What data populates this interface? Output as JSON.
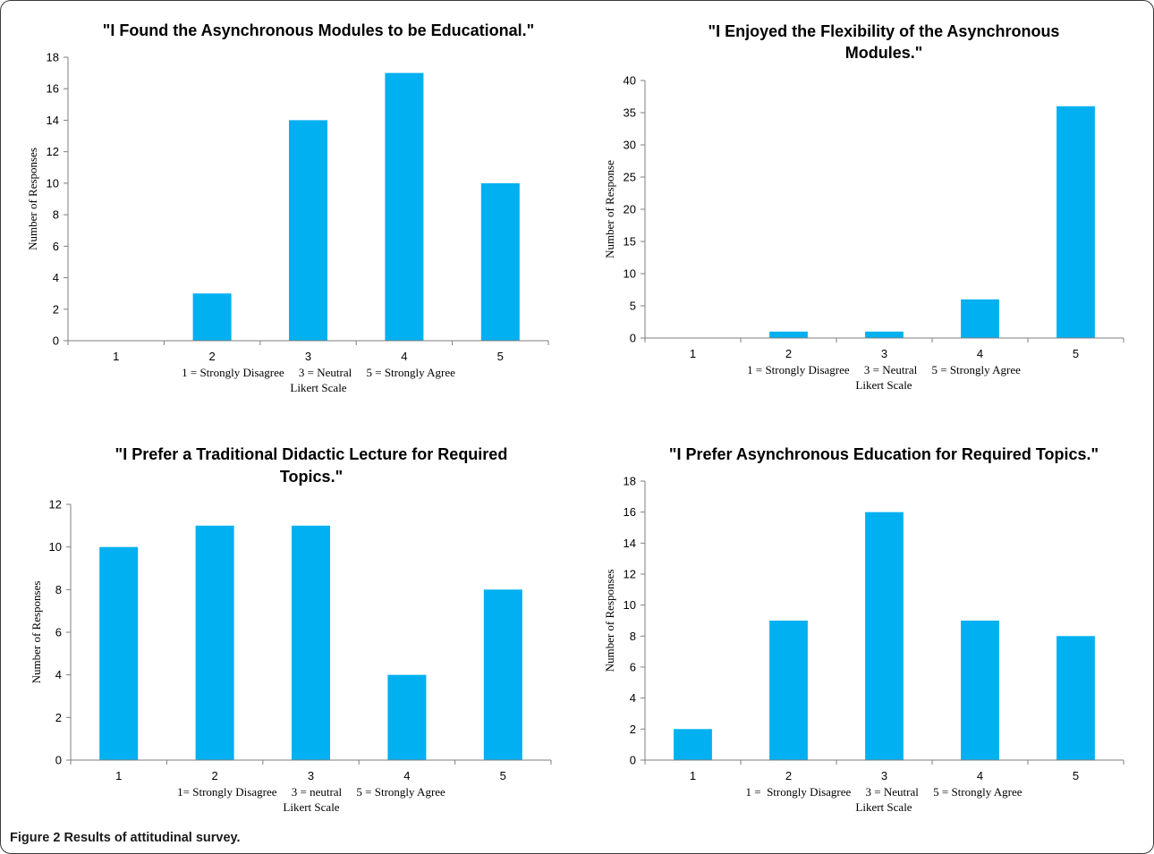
{
  "colors": {
    "bar": "#00b0f0",
    "axis": "#7f7f7f",
    "text": "#000000"
  },
  "caption": {
    "label": "Figure 2",
    "text": "Results of attitudinal survey."
  },
  "chart_data": [
    {
      "type": "bar",
      "title_lines": [
        "\"I Found the Asynchronous Modules to be Educational.\""
      ],
      "ylabel": "Number of Responses",
      "xlabel_scale": "1 = Strongly Disagree     3 = Neutral     5 = Strongly Agree",
      "xlabel": "Likert Scale",
      "categories": [
        "1",
        "2",
        "3",
        "4",
        "5"
      ],
      "values": [
        0,
        3,
        14,
        17,
        10
      ],
      "ylim": [
        0,
        18
      ],
      "yticks": [
        0,
        2,
        4,
        6,
        8,
        10,
        12,
        14,
        16,
        18
      ],
      "grid": false,
      "legend": "none"
    },
    {
      "type": "bar",
      "title_lines": [
        "\"I Enjoyed the Flexibility of the Asynchronous",
        "Modules.\""
      ],
      "ylabel": "Number of Response",
      "xlabel_scale": "1 = Strongly Disagree     3 = Neutral     5 = Strongly Agree",
      "xlabel": "Likert Scale",
      "categories": [
        "1",
        "2",
        "3",
        "4",
        "5"
      ],
      "values": [
        0,
        1,
        1,
        6,
        36
      ],
      "ylim": [
        0,
        40
      ],
      "yticks": [
        0,
        5,
        10,
        15,
        20,
        25,
        30,
        35,
        40
      ],
      "grid": false,
      "legend": "none"
    },
    {
      "type": "bar",
      "title_lines": [
        "\"I Prefer a Traditional Didactic Lecture for Required",
        "Topics.\""
      ],
      "ylabel": "Number of Responses",
      "xlabel_scale": "1= Strongly Disagree     3 = neutral     5 = Strongly Agree",
      "xlabel": "Likert Scale",
      "categories": [
        "1",
        "2",
        "3",
        "4",
        "5"
      ],
      "values": [
        10,
        11,
        11,
        4,
        8
      ],
      "ylim": [
        0,
        12
      ],
      "yticks": [
        0,
        2,
        4,
        6,
        8,
        10,
        12
      ],
      "grid": false,
      "legend": "none"
    },
    {
      "type": "bar",
      "title_lines": [
        "\"I Prefer Asynchronous Education for Required Topics.\""
      ],
      "ylabel": "Number of Responses",
      "xlabel_scale": "1 =  Strongly Disagree     3 = Neutral     5 = Strongly Agree",
      "xlabel": "Likert Scale",
      "categories": [
        "1",
        "2",
        "3",
        "4",
        "5"
      ],
      "values": [
        2,
        9,
        16,
        9,
        8
      ],
      "ylim": [
        0,
        18
      ],
      "yticks": [
        0,
        2,
        4,
        6,
        8,
        10,
        12,
        14,
        16,
        18
      ],
      "grid": false,
      "legend": "none"
    }
  ]
}
